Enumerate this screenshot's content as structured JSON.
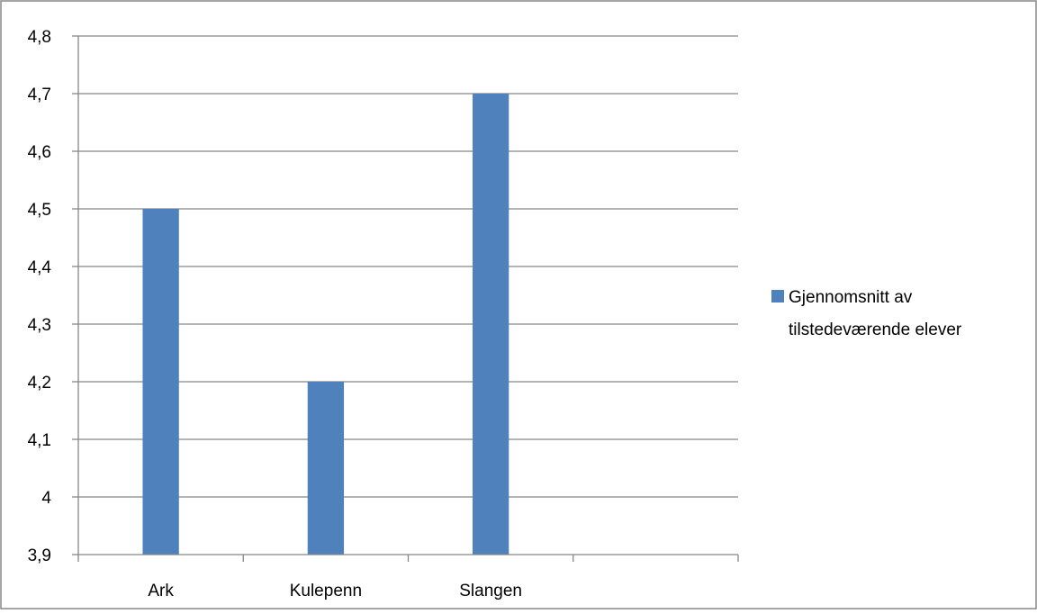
{
  "chart_data": {
    "type": "bar",
    "categories": [
      "Ark",
      "Kulepenn",
      "Slangen",
      ""
    ],
    "series": [
      {
        "name": "Gjennomsnitt av tilstedeværende elever",
        "values": [
          4.5,
          4.2,
          4.7,
          null
        ],
        "color": "#4F81BD"
      }
    ],
    "ylim": [
      3.9,
      4.8
    ],
    "yticks": [
      "3,9",
      "4",
      "4,1",
      "4,2",
      "4,3",
      "4,4",
      "4,5",
      "4,6",
      "4,7",
      "4,8"
    ],
    "ytick_values": [
      3.9,
      4.0,
      4.1,
      4.2,
      4.3,
      4.4,
      4.5,
      4.6,
      4.7,
      4.8
    ],
    "grid": true,
    "legend_placement": "right",
    "legend_lines": [
      "Gjennomsnitt av",
      "tilstedeværende elever"
    ],
    "border_color": "#878787",
    "grid_color": "#878787"
  }
}
